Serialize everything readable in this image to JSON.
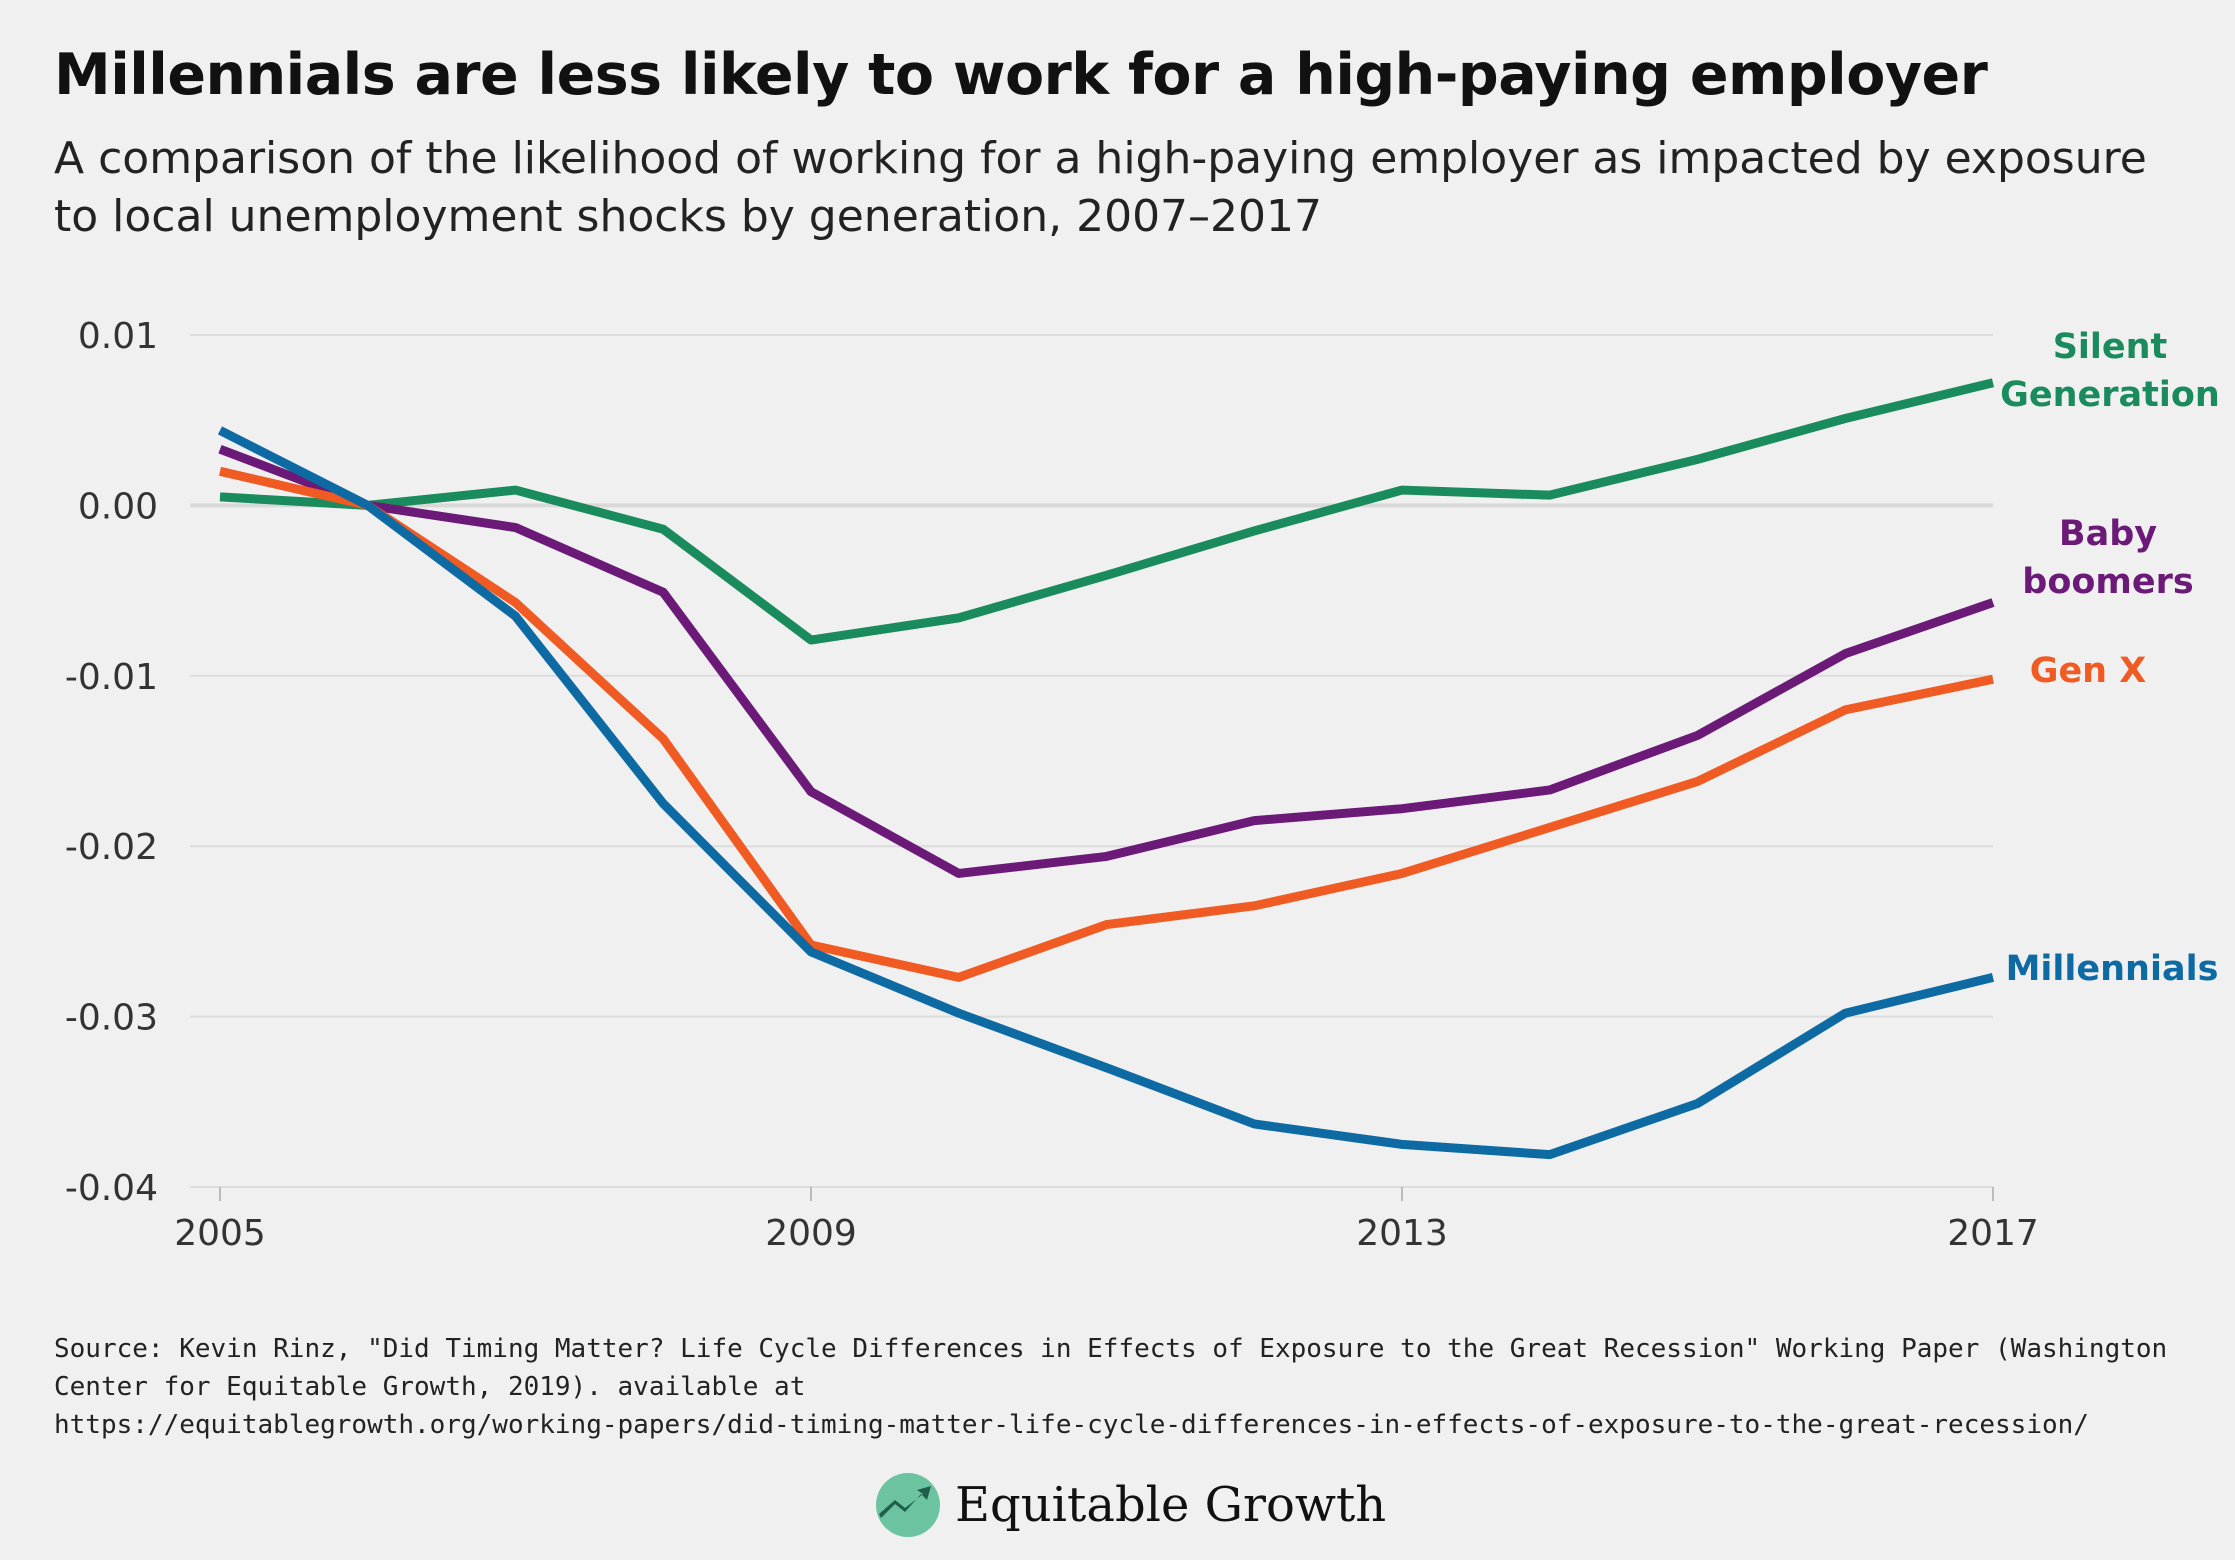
{
  "header": {
    "title": "Millennials are less likely to work for a high-paying employer",
    "subtitle": "A comparison of the likelihood of working for a high-paying employer as impacted by exposure to local unemployment shocks by generation, 2007–2017"
  },
  "chart_data": {
    "type": "line",
    "x": [
      2005,
      2006,
      2007,
      2008,
      2009,
      2010,
      2011,
      2012,
      2013,
      2014,
      2015,
      2016,
      2017
    ],
    "xlim": [
      2005,
      2017
    ],
    "ylim": [
      -0.04,
      0.01
    ],
    "x_ticks": [
      {
        "value": 2005,
        "label": "2005"
      },
      {
        "value": 2009,
        "label": "2009"
      },
      {
        "value": 2013,
        "label": "2013"
      },
      {
        "value": 2017,
        "label": "2017"
      }
    ],
    "y_ticks": [
      {
        "value": 0.01,
        "label": "0.01"
      },
      {
        "value": 0.0,
        "label": "0.00"
      },
      {
        "value": -0.01,
        "label": "-0.01"
      },
      {
        "value": -0.02,
        "label": "-0.02"
      },
      {
        "value": -0.03,
        "label": "-0.03"
      },
      {
        "value": -0.04,
        "label": "-0.04"
      }
    ],
    "grid": true,
    "legend": "direct labels at line ends",
    "series": [
      {
        "name": "Silent Generation",
        "label_lines": [
          "Silent",
          "Generation"
        ],
        "color": "#1a8b5c",
        "values": [
          0.0005,
          0.0,
          0.0009,
          -0.0014,
          -0.0079,
          -0.0066,
          -0.0041,
          -0.0015,
          0.0009,
          0.0006,
          0.0027,
          0.0051,
          0.0072
        ]
      },
      {
        "name": "Baby boomers",
        "label_lines": [
          "Baby",
          "boomers"
        ],
        "color": "#6b1a78",
        "values": [
          0.0033,
          0.0,
          -0.0013,
          -0.0051,
          -0.0168,
          -0.0216,
          -0.0206,
          -0.0185,
          -0.0178,
          -0.0167,
          -0.0135,
          -0.0087,
          -0.0057
        ]
      },
      {
        "name": "Gen X",
        "label_lines": [
          "Gen X"
        ],
        "color": "#f05a23",
        "values": [
          0.002,
          0.0,
          -0.0057,
          -0.0137,
          -0.0258,
          -0.0277,
          -0.0246,
          -0.0235,
          -0.0216,
          -0.0189,
          -0.0162,
          -0.012,
          -0.0102
        ]
      },
      {
        "name": "Millennials",
        "label_lines": [
          "Millennials"
        ],
        "color": "#0d6aa3",
        "values": [
          0.0044,
          0.0,
          -0.0065,
          -0.0175,
          -0.0262,
          -0.0298,
          -0.033,
          -0.0363,
          -0.0375,
          -0.0381,
          -0.0351,
          -0.0298,
          -0.0277
        ]
      }
    ]
  },
  "source": {
    "lines": [
      "Source: Kevin Rinz, \"Did Timing Matter? Life Cycle Differences in Effects of Exposure to the Great Recession\" Working Paper (Washington",
      "Center for Equitable Growth, 2019). available at",
      "https://equitablegrowth.org/working-papers/did-timing-matter-life-cycle-differences-in-effects-of-exposure-to-the-great-recession/"
    ]
  },
  "brand": {
    "name": "Equitable Growth",
    "icon": "equitable-growth-logo-icon",
    "colors": {
      "circle": "#6cc3a0",
      "arrow": "#1e5e4a"
    }
  }
}
